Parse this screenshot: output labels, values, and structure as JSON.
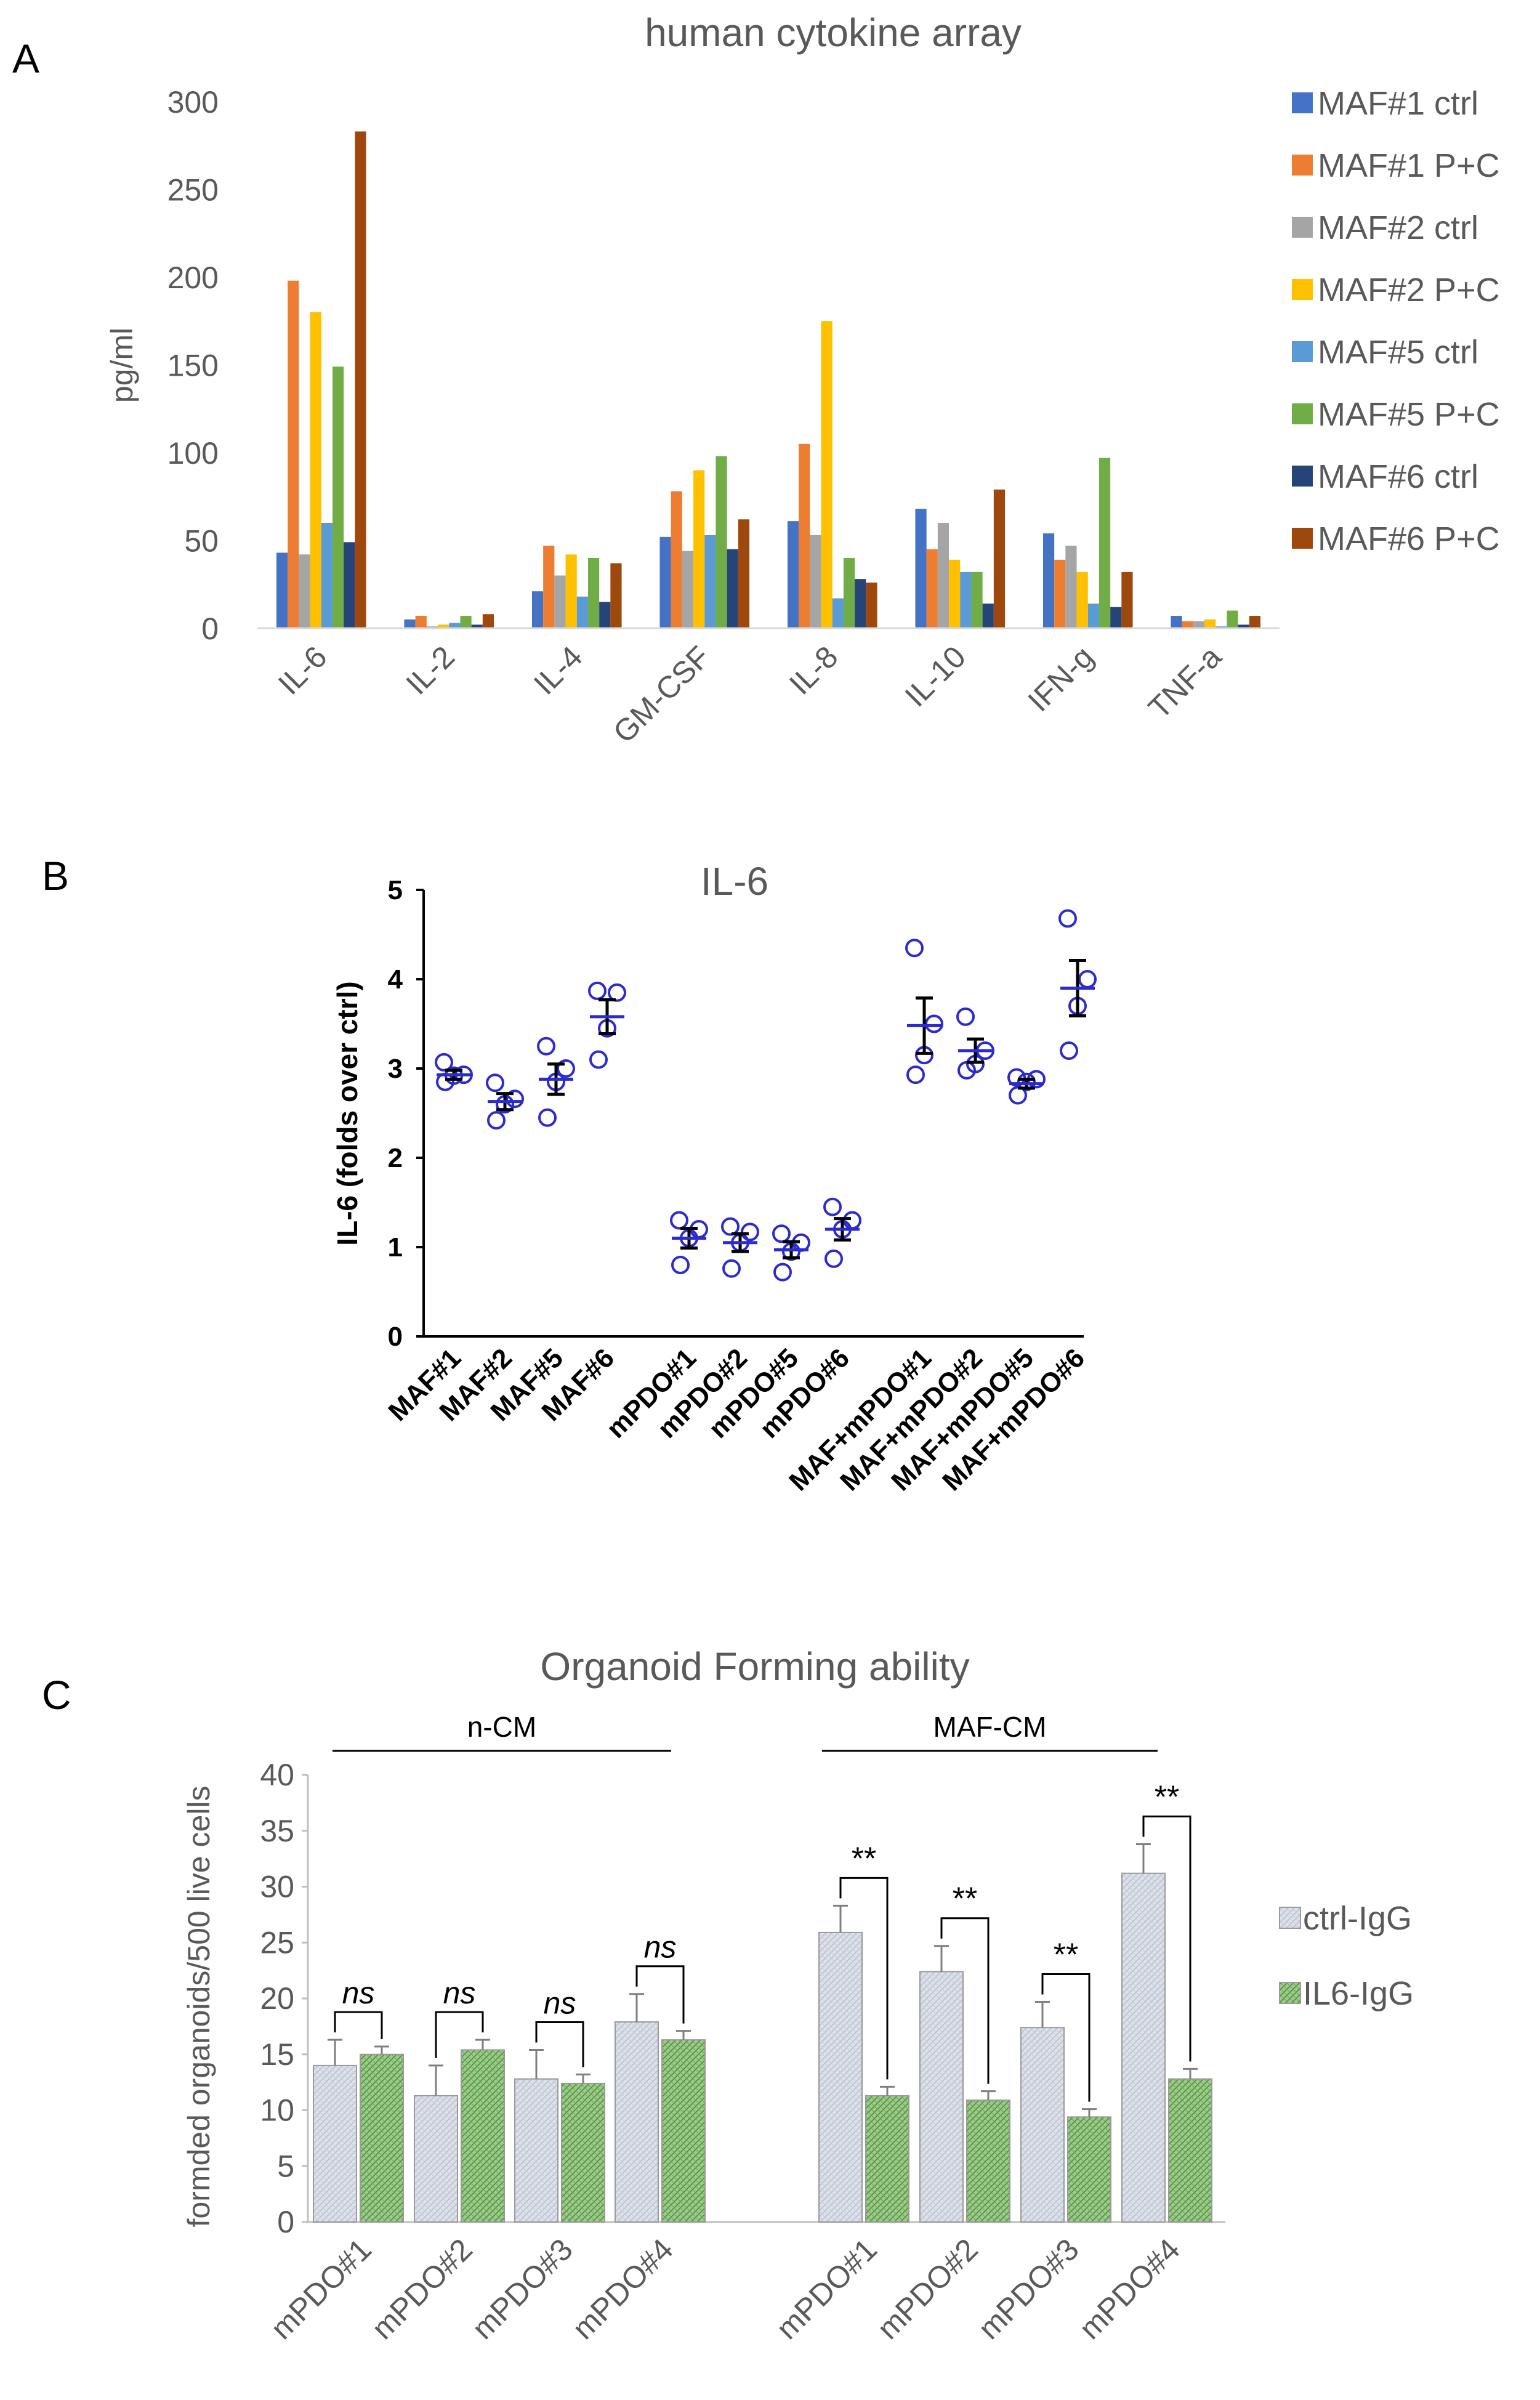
{
  "panels": {
    "A": "A",
    "B": "B",
    "C": "C"
  },
  "chart_data": [
    {
      "id": "A",
      "type": "bar",
      "title": "human cytokine array",
      "ylabel": "pg/ml",
      "xlabel": "",
      "ylim": [
        0,
        300
      ],
      "yticks": [
        0,
        50,
        100,
        150,
        200,
        250,
        300
      ],
      "grid": false,
      "legend_position": "right",
      "categories": [
        "IL-6",
        "IL-2",
        "IL-4",
        "GM-CSF",
        "IL-8",
        "IL-10",
        "IFN-g",
        "TNF-a"
      ],
      "series": [
        {
          "name": "MAF#1 ctrl",
          "color": "#4472C4",
          "values": [
            43,
            5,
            21,
            52,
            61,
            68,
            54,
            7
          ]
        },
        {
          "name": "MAF#1 P+C",
          "color": "#ED7D31",
          "values": [
            198,
            7,
            47,
            78,
            105,
            45,
            39,
            4
          ]
        },
        {
          "name": "MAF#2 ctrl",
          "color": "#A5A5A5",
          "values": [
            42,
            1,
            30,
            44,
            53,
            60,
            47,
            4
          ]
        },
        {
          "name": "MAF#2 P+C",
          "color": "#FFC000",
          "values": [
            180,
            2,
            42,
            90,
            175,
            39,
            32,
            5
          ]
        },
        {
          "name": "MAF#5 ctrl",
          "color": "#5B9BD5",
          "values": [
            60,
            3,
            18,
            53,
            17,
            32,
            14,
            1
          ]
        },
        {
          "name": "MAF#5 P+C",
          "color": "#70AD47",
          "values": [
            149,
            7,
            40,
            98,
            40,
            32,
            97,
            10
          ]
        },
        {
          "name": "MAF#6 ctrl",
          "color": "#264478",
          "values": [
            49,
            2,
            15,
            45,
            28,
            14,
            12,
            2
          ]
        },
        {
          "name": "MAF#6 P+C",
          "color": "#9E480E",
          "values": [
            283,
            8,
            37,
            62,
            26,
            79,
            32,
            7
          ]
        }
      ]
    },
    {
      "id": "B",
      "type": "scatter",
      "title": "IL-6",
      "ylabel": "IL-6 (folds over ctrl)",
      "xlabel": "",
      "ylim": [
        0,
        5
      ],
      "yticks": [
        0,
        1,
        2,
        3,
        4,
        5
      ],
      "point_color": "#2B2BD0",
      "categories": [
        "MAF#1",
        "MAF#2",
        "MAF#5",
        "MAF#6",
        "mPDO#1",
        "mPDO#2",
        "mPDO#5",
        "mPDO#6",
        "MAF+mPDO#1",
        "MAF+mPDO#2",
        "MAF+mPDO#5",
        "MAF+mPDO#6"
      ],
      "groups": [
        {
          "category": "MAF#1",
          "points": [
            3.07,
            2.93,
            2.92,
            2.85
          ],
          "mean": 2.93,
          "sem": 0.05
        },
        {
          "category": "MAF#2",
          "points": [
            2.84,
            2.66,
            2.6,
            2.42
          ],
          "mean": 2.63,
          "sem": 0.09
        },
        {
          "category": "MAF#5",
          "points": [
            3.25,
            3.0,
            2.85,
            2.45
          ],
          "mean": 2.88,
          "sem": 0.17
        },
        {
          "category": "MAF#6",
          "points": [
            3.87,
            3.85,
            3.45,
            3.1
          ],
          "mean": 3.58,
          "sem": 0.19
        },
        {
          "category": "mPDO#1",
          "points": [
            1.3,
            1.2,
            1.1,
            0.8
          ],
          "mean": 1.1,
          "sem": 0.11
        },
        {
          "category": "mPDO#2",
          "points": [
            1.23,
            1.17,
            1.05,
            0.76
          ],
          "mean": 1.05,
          "sem": 0.1
        },
        {
          "category": "mPDO#5",
          "points": [
            1.15,
            1.05,
            0.95,
            0.72
          ],
          "mean": 0.97,
          "sem": 0.09
        },
        {
          "category": "mPDO#6",
          "points": [
            1.45,
            1.3,
            1.2,
            0.87
          ],
          "mean": 1.2,
          "sem": 0.12
        },
        {
          "category": "MAF+mPDO#1",
          "points": [
            4.35,
            3.5,
            3.15,
            2.93
          ],
          "mean": 3.48,
          "sem": 0.31
        },
        {
          "category": "MAF+mPDO#2",
          "points": [
            3.58,
            3.2,
            3.05,
            2.98
          ],
          "mean": 3.2,
          "sem": 0.13
        },
        {
          "category": "MAF+mPDO#5",
          "points": [
            2.9,
            2.88,
            2.85,
            2.7
          ],
          "mean": 2.83,
          "sem": 0.05
        },
        {
          "category": "MAF+mPDO#6",
          "points": [
            4.68,
            4.0,
            3.7,
            3.2
          ],
          "mean": 3.9,
          "sem": 0.31
        }
      ]
    },
    {
      "id": "C",
      "type": "bar",
      "title": "Organoid Forming ability",
      "ylabel": "formded organoids/500 live cells",
      "xlabel": "",
      "ylim": [
        0,
        40
      ],
      "yticks": [
        0,
        5,
        10,
        15,
        20,
        25,
        30,
        35,
        40
      ],
      "legend_position": "right",
      "categories": [
        "mPDO#1",
        "mPDO#2",
        "mPDO#3",
        "mPDO#4",
        "mPDO#1",
        "mPDO#2",
        "mPDO#3",
        "mPDO#4"
      ],
      "group_labels": [
        {
          "label": "n-CM",
          "categories": [
            0,
            1,
            2,
            3
          ]
        },
        {
          "label": "MAF-CM",
          "categories": [
            4,
            5,
            6,
            7
          ]
        }
      ],
      "series": [
        {
          "name": "ctrl-IgG",
          "color": "#DCE1EA",
          "values": [
            14.0,
            11.3,
            12.8,
            17.9,
            25.9,
            22.4,
            17.4,
            31.2
          ],
          "errors": [
            2.3,
            2.7,
            2.6,
            2.5,
            2.4,
            2.3,
            2.3,
            2.6
          ]
        },
        {
          "name": "IL6-IgG",
          "color": "#9CCB8A",
          "values": [
            15.0,
            15.4,
            12.4,
            16.3,
            11.3,
            10.9,
            9.4,
            12.8
          ],
          "errors": [
            0.7,
            0.9,
            0.8,
            0.8,
            0.8,
            0.8,
            0.7,
            0.9
          ]
        }
      ],
      "significance": [
        "ns",
        "ns",
        "ns",
        "ns",
        "**",
        "**",
        "**",
        "**"
      ]
    }
  ]
}
